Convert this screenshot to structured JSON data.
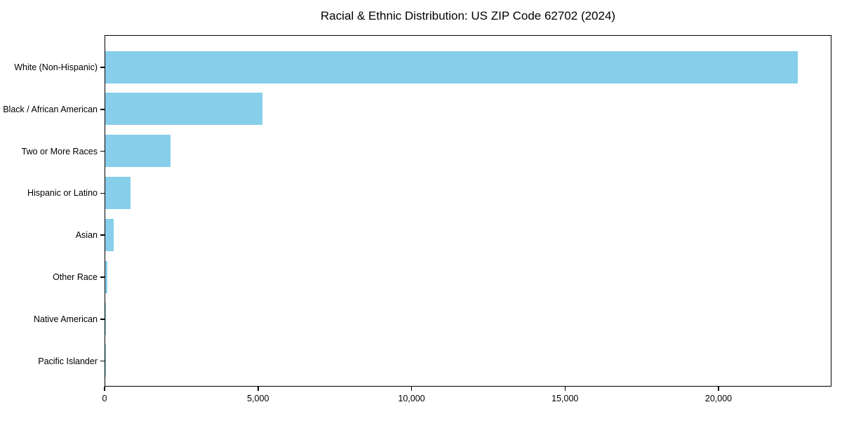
{
  "chart_data": {
    "type": "bar",
    "orientation": "horizontal",
    "title": "Racial & Ethnic Distribution: US ZIP Code 62702 (2024)",
    "xlabel": "",
    "ylabel": "",
    "categories": [
      "White (Non-Hispanic)",
      "Black / African American",
      "Two or More Races",
      "Hispanic or Latino",
      "Asian",
      "Other Race",
      "Native American",
      "Pacific Islander"
    ],
    "values": [
      22550,
      5120,
      2130,
      820,
      275,
      70,
      25,
      10
    ],
    "xlim": [
      0,
      23680
    ],
    "x_ticks": [
      {
        "value": 0,
        "label": "0"
      },
      {
        "value": 5000,
        "label": "5,000"
      },
      {
        "value": 10000,
        "label": "10,000"
      },
      {
        "value": 15000,
        "label": "15,000"
      },
      {
        "value": 20000,
        "label": "20,000"
      }
    ],
    "bar_color": "#87CEEB",
    "grid": false,
    "legend": null,
    "background_color": "#ffffff",
    "axis_color": "#000000"
  }
}
